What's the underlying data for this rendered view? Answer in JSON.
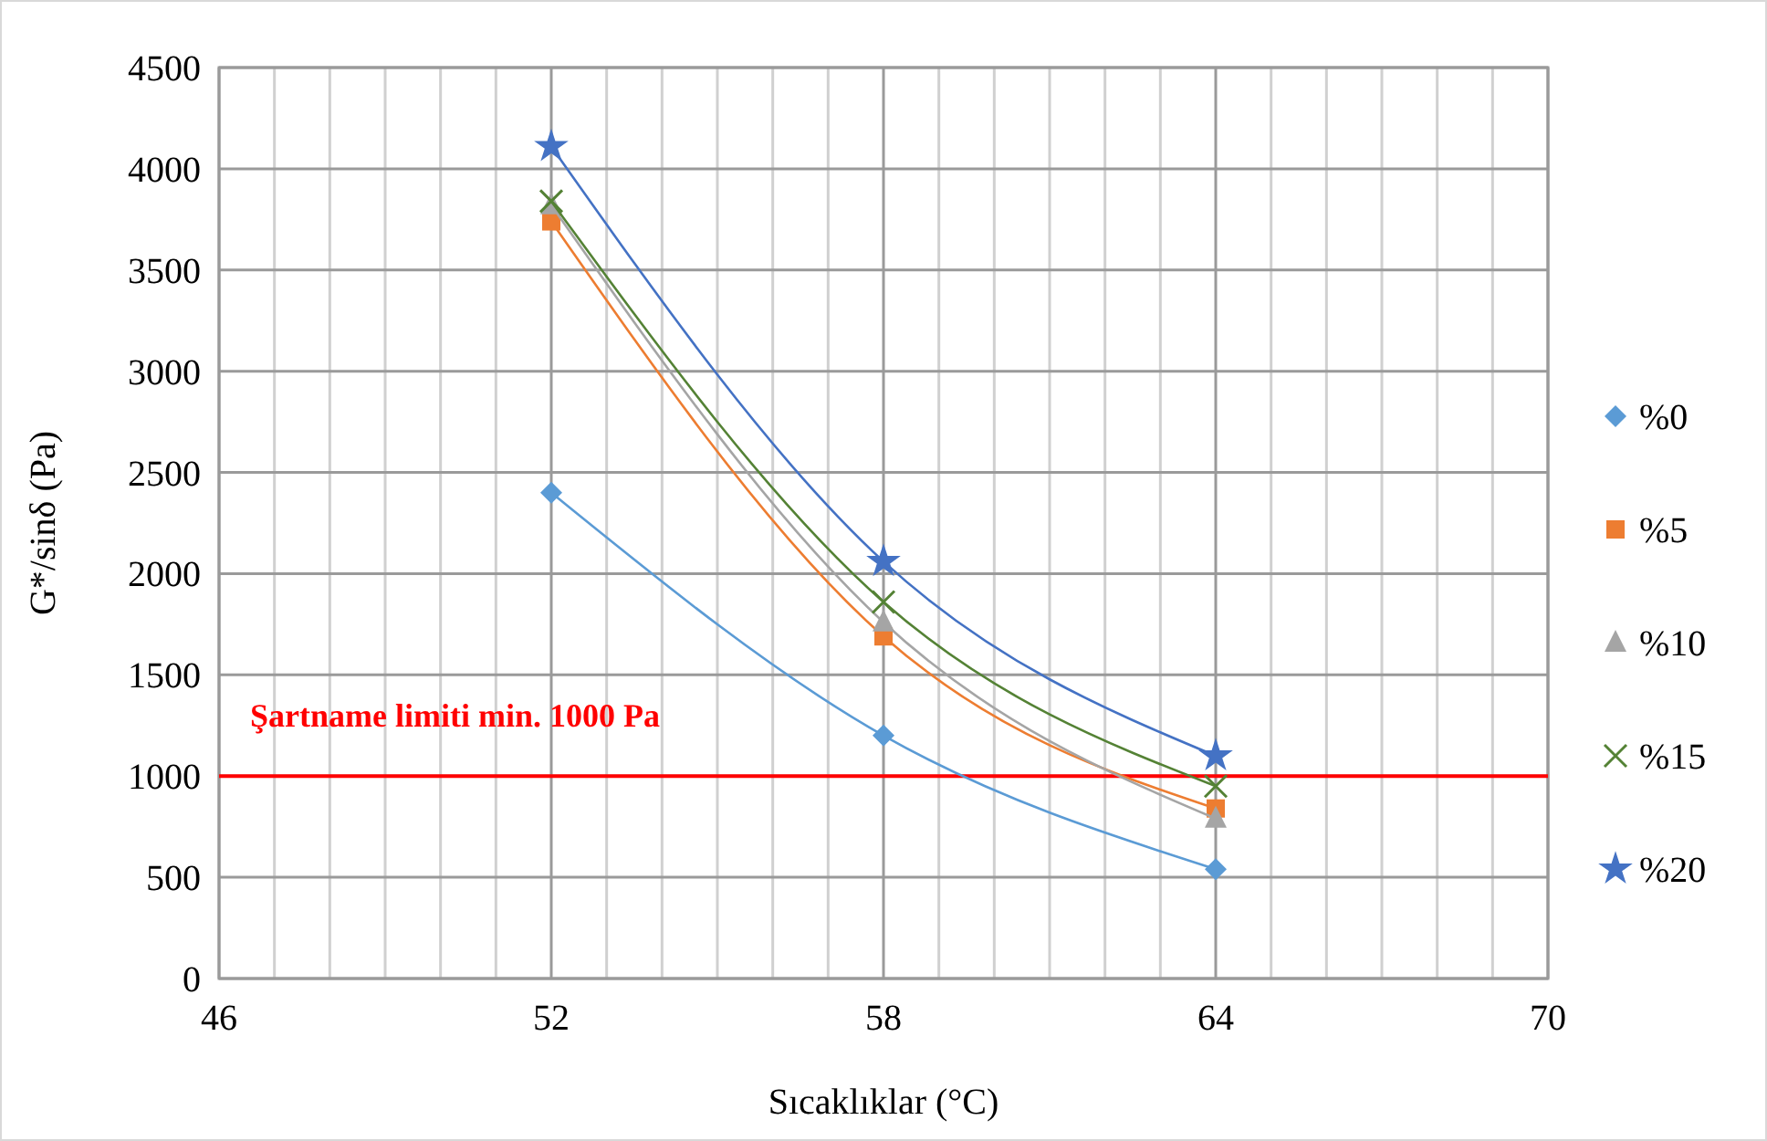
{
  "chart_data": {
    "type": "line",
    "xlabel": "Sıcaklıklar (°C)",
    "ylabel": "G*/sinδ (Pa)",
    "x": [
      52,
      58,
      64
    ],
    "series": [
      {
        "name": "%0",
        "color": "#5b9bd5",
        "marker": "diamond",
        "values": [
          2400,
          1200,
          540
        ]
      },
      {
        "name": "%5",
        "color": "#ed7d31",
        "marker": "square",
        "values": [
          3740,
          1690,
          840
        ]
      },
      {
        "name": "%10",
        "color": "#a5a5a5",
        "marker": "triangle",
        "values": [
          3820,
          1760,
          790
        ]
      },
      {
        "name": "%15",
        "color": "#548235",
        "marker": "cross",
        "values": [
          3840,
          1860,
          950
        ]
      },
      {
        "name": "%20",
        "color": "#4472c4",
        "marker": "star",
        "values": [
          4110,
          2060,
          1100
        ]
      }
    ],
    "line_style": "solid",
    "xlim": [
      46,
      70
    ],
    "xticks": [
      46,
      {
        "value": 47,
        "label": null
      },
      {
        "value": 48,
        "label": null
      },
      {
        "value": 49,
        "label": null
      },
      {
        "value": 50,
        "label": null
      },
      {
        "value": 51,
        "label": null
      },
      52,
      {
        "value": 53,
        "label": null
      },
      {
        "value": 54,
        "label": null
      },
      {
        "value": 55,
        "label": null
      },
      {
        "value": 56,
        "label": null
      },
      {
        "value": 57,
        "label": null
      },
      58,
      {
        "value": 59,
        "label": null
      },
      {
        "value": 60,
        "label": null
      },
      {
        "value": 61,
        "label": null
      },
      {
        "value": 62,
        "label": null
      },
      {
        "value": 63,
        "label": null
      },
      64,
      {
        "value": 65,
        "label": null
      },
      {
        "value": 66,
        "label": null
      },
      {
        "value": 67,
        "label": null
      },
      {
        "value": 68,
        "label": null
      },
      {
        "value": 69,
        "label": null
      },
      70
    ],
    "ylim": [
      0,
      4500
    ],
    "yticks": [
      0,
      500,
      1000,
      1500,
      2000,
      2500,
      3000,
      3500,
      4000,
      4500
    ],
    "grid": true,
    "legend": "right",
    "ref_lines": [
      {
        "axis": "y",
        "value": 1000,
        "label": "Şartname limiti min. 1000 Pa",
        "color": "#ff0000",
        "line_style": "solid"
      }
    ]
  }
}
